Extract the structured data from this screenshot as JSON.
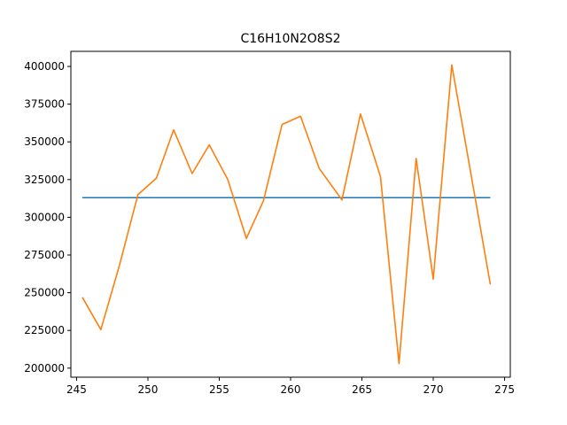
{
  "chart_data": {
    "type": "line",
    "title": "C16H10N2O8S2",
    "xlabel": "",
    "ylabel": "",
    "xlim": [
      244.6,
      275.4
    ],
    "ylim": [
      194000,
      410000
    ],
    "xticks": [
      245,
      250,
      255,
      260,
      265,
      270,
      275
    ],
    "yticks": [
      200000,
      225000,
      250000,
      275000,
      300000,
      325000,
      350000,
      375000,
      400000
    ],
    "grid": false,
    "legend": "none",
    "series": [
      {
        "color": "#1f77b4",
        "x": [
          245.4,
          274.0
        ],
        "y": [
          313000,
          313000
        ]
      },
      {
        "color": "#ff7f0e",
        "x": [
          245.4,
          246.7,
          248.0,
          249.3,
          250.6,
          251.8,
          253.1,
          254.3,
          255.6,
          256.9,
          258.1,
          259.4,
          260.7,
          262.0,
          263.6,
          264.9,
          266.3,
          267.6,
          268.8,
          270.0,
          271.3,
          272.6,
          274.0
        ],
        "y": [
          247000,
          225500,
          268000,
          315000,
          326000,
          358000,
          329000,
          348000,
          325000,
          286000,
          311000,
          361500,
          367000,
          332500,
          311500,
          368500,
          327000,
          203000,
          339000,
          259000,
          401000,
          331000,
          255500
        ]
      }
    ]
  }
}
